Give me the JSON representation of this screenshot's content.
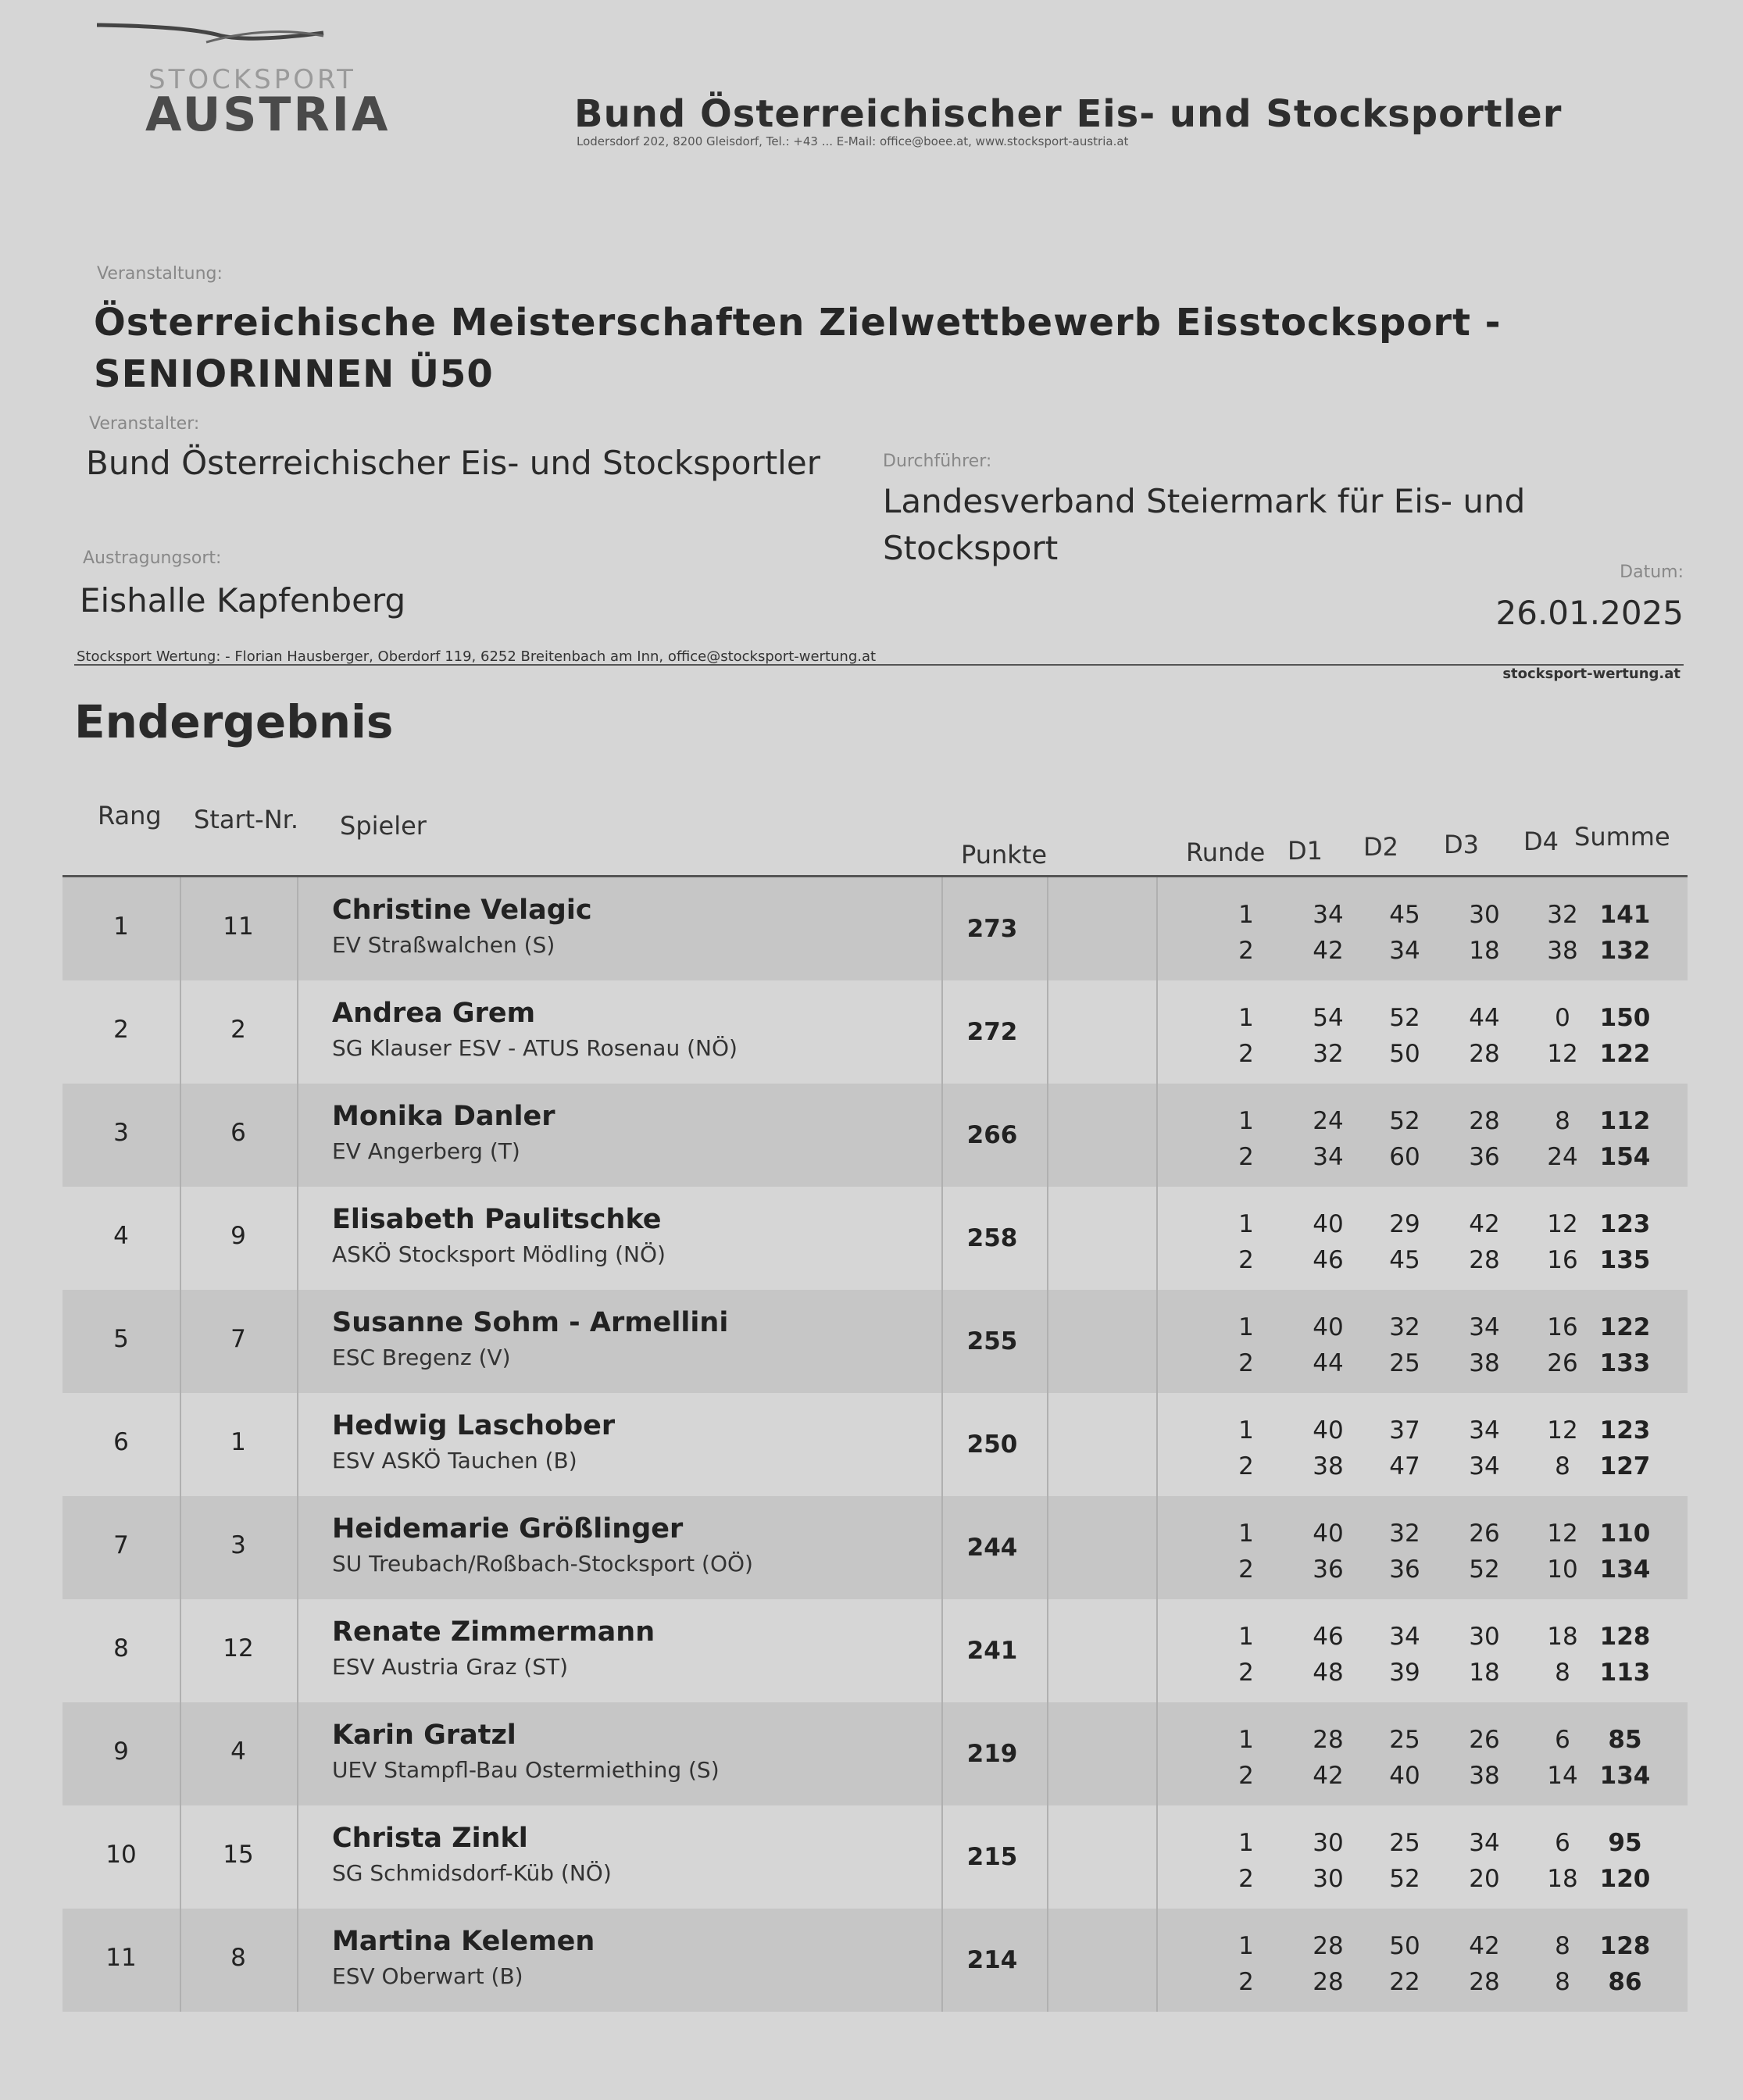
{
  "header": {
    "logo_small": "STOCKSPORT",
    "logo_big": "AUSTRIA",
    "org_title": "Bund Österreichischer Eis- und Stocksportler",
    "org_address": "Lodersdorf 202, 8200 Gleisdorf, Tel.: +43 ... E-Mail: office@boee.at, www.stocksport-austria.at"
  },
  "event": {
    "veranstaltung_label": "Veranstaltung:",
    "title_line1": "Österreichische Meisterschaften Zielwettbewerb Eisstocksport -",
    "title_line2": "SENIORINNEN Ü50",
    "veranstalter_label": "Veranstalter:",
    "veranstalter": "Bund Österreichischer Eis- und Stocksportler",
    "durchfuehrer_label": "Durchführer:",
    "durchfuehrer_line1": "Landesverband Steiermark für Eis- und",
    "durchfuehrer_line2": "Stocksport",
    "ort_label": "Austragungsort:",
    "ort": "Eishalle Kapfenberg",
    "datum_label": "Datum:",
    "datum": "26.01.2025"
  },
  "credit": "Stocksport Wertung: - Florian Hausberger, Oberdorf 119, 6252 Breitenbach am Inn, office@stocksport-wertung.at",
  "credit_right": "stocksport-wertung.at",
  "section_title": "Endergebnis",
  "table": {
    "headers": {
      "rang": "Rang",
      "start": "Start-Nr.",
      "spieler": "Spieler",
      "punkte": "Punkte",
      "runde": "Runde",
      "d1": "D1",
      "d2": "D2",
      "d3": "D3",
      "d4": "D4",
      "summe": "Summe"
    },
    "rows": [
      {
        "rang": "1",
        "start": "11",
        "name": "Christine Velagic",
        "club": "EV Straßwalchen (S)",
        "punkte": "273",
        "runden": [
          [
            "1",
            "34",
            "45",
            "30",
            "32",
            "141"
          ],
          [
            "2",
            "42",
            "34",
            "18",
            "38",
            "132"
          ]
        ]
      },
      {
        "rang": "2",
        "start": "2",
        "name": "Andrea Grem",
        "club": "SG Klauser ESV - ATUS Rosenau (NÖ)",
        "punkte": "272",
        "runden": [
          [
            "1",
            "54",
            "52",
            "44",
            "0",
            "150"
          ],
          [
            "2",
            "32",
            "50",
            "28",
            "12",
            "122"
          ]
        ]
      },
      {
        "rang": "3",
        "start": "6",
        "name": "Monika Danler",
        "club": "EV Angerberg (T)",
        "punkte": "266",
        "runden": [
          [
            "1",
            "24",
            "52",
            "28",
            "8",
            "112"
          ],
          [
            "2",
            "34",
            "60",
            "36",
            "24",
            "154"
          ]
        ]
      },
      {
        "rang": "4",
        "start": "9",
        "name": "Elisabeth Paulitschke",
        "club": "ASKÖ Stocksport Mödling (NÖ)",
        "punkte": "258",
        "runden": [
          [
            "1",
            "40",
            "29",
            "42",
            "12",
            "123"
          ],
          [
            "2",
            "46",
            "45",
            "28",
            "16",
            "135"
          ]
        ]
      },
      {
        "rang": "5",
        "start": "7",
        "name": "Susanne Sohm - Armellini",
        "club": "ESC Bregenz (V)",
        "punkte": "255",
        "runden": [
          [
            "1",
            "40",
            "32",
            "34",
            "16",
            "122"
          ],
          [
            "2",
            "44",
            "25",
            "38",
            "26",
            "133"
          ]
        ]
      },
      {
        "rang": "6",
        "start": "1",
        "name": "Hedwig Laschober",
        "club": "ESV ASKÖ Tauchen (B)",
        "punkte": "250",
        "runden": [
          [
            "1",
            "40",
            "37",
            "34",
            "12",
            "123"
          ],
          [
            "2",
            "38",
            "47",
            "34",
            "8",
            "127"
          ]
        ]
      },
      {
        "rang": "7",
        "start": "3",
        "name": "Heidemarie Größlinger",
        "club": "SU Treubach/Roßbach-Stocksport (OÖ)",
        "punkte": "244",
        "runden": [
          [
            "1",
            "40",
            "32",
            "26",
            "12",
            "110"
          ],
          [
            "2",
            "36",
            "36",
            "52",
            "10",
            "134"
          ]
        ]
      },
      {
        "rang": "8",
        "start": "12",
        "name": "Renate Zimmermann",
        "club": "ESV Austria Graz (ST)",
        "punkte": "241",
        "runden": [
          [
            "1",
            "46",
            "34",
            "30",
            "18",
            "128"
          ],
          [
            "2",
            "48",
            "39",
            "18",
            "8",
            "113"
          ]
        ]
      },
      {
        "rang": "9",
        "start": "4",
        "name": "Karin Gratzl",
        "club": "UEV Stampfl-Bau Ostermiething (S)",
        "punkte": "219",
        "runden": [
          [
            "1",
            "28",
            "25",
            "26",
            "6",
            "85"
          ],
          [
            "2",
            "42",
            "40",
            "38",
            "14",
            "134"
          ]
        ]
      },
      {
        "rang": "10",
        "start": "15",
        "name": "Christa Zinkl",
        "club": "SG Schmidsdorf-Küb (NÖ)",
        "punkte": "215",
        "runden": [
          [
            "1",
            "30",
            "25",
            "34",
            "6",
            "95"
          ],
          [
            "2",
            "30",
            "52",
            "20",
            "18",
            "120"
          ]
        ]
      },
      {
        "rang": "11",
        "start": "8",
        "name": "Martina Kelemen",
        "club": "ESV Oberwart (B)",
        "punkte": "214",
        "runden": [
          [
            "1",
            "28",
            "50",
            "42",
            "8",
            "128"
          ],
          [
            "2",
            "28",
            "22",
            "28",
            "8",
            "86"
          ]
        ]
      }
    ]
  }
}
